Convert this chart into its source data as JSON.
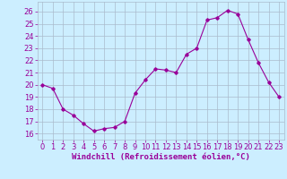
{
  "hours": [
    0,
    1,
    2,
    3,
    4,
    5,
    6,
    7,
    8,
    9,
    10,
    11,
    12,
    13,
    14,
    15,
    16,
    17,
    18,
    19,
    20,
    21,
    22,
    23
  ],
  "values": [
    20.0,
    19.7,
    18.0,
    17.5,
    16.8,
    16.2,
    16.4,
    16.5,
    17.0,
    19.3,
    20.4,
    21.3,
    21.2,
    21.0,
    22.5,
    23.0,
    25.3,
    25.5,
    26.1,
    25.8,
    23.7,
    21.8,
    20.2,
    19.0
  ],
  "line_color": "#990099",
  "marker": "D",
  "marker_size": 1.8,
  "line_width": 0.8,
  "xlabel": "Windchill (Refroidissement éolien,°C)",
  "xlabel_fontsize": 6.5,
  "ylabel_ticks": [
    16,
    17,
    18,
    19,
    20,
    21,
    22,
    23,
    24,
    25,
    26
  ],
  "ylim": [
    15.5,
    26.8
  ],
  "xlim": [
    -0.5,
    23.5
  ],
  "bg_color": "#cceeff",
  "grid_color": "#aabbcc",
  "tick_fontsize": 6.0
}
